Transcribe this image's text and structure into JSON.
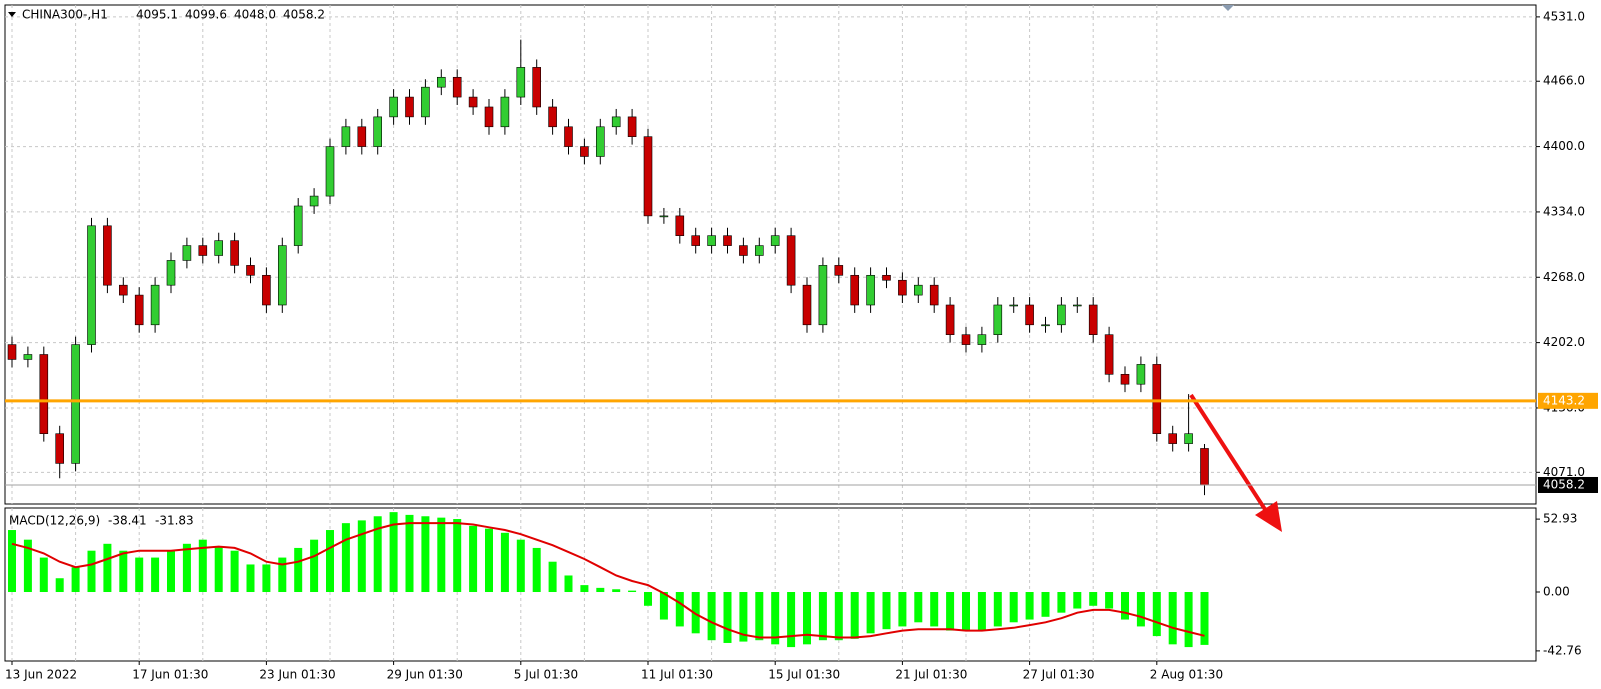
{
  "chart_data": {
    "type": "candlestick",
    "title": "CHINA300-,H1",
    "ohlc_labels": [
      "4095.1",
      "4099.6",
      "4048.0",
      "4058.2"
    ],
    "categories": [
      "13 Jun 2022",
      null,
      null,
      null,
      null,
      null,
      null,
      null,
      "17 Jun 01:30",
      null,
      null,
      null,
      null,
      null,
      null,
      null,
      "23 Jun 01:30",
      null,
      null,
      null,
      null,
      null,
      null,
      null,
      "29 Jun 01:30",
      null,
      null,
      null,
      null,
      null,
      null,
      null,
      "5 Jul 01:30",
      null,
      null,
      null,
      null,
      null,
      null,
      null,
      "11 Jul 01:30",
      null,
      null,
      null,
      null,
      null,
      null,
      null,
      "15 Jul 01:30",
      null,
      null,
      null,
      null,
      null,
      null,
      null,
      "21 Jul 01:30",
      null,
      null,
      null,
      null,
      null,
      null,
      null,
      "27 Jul 01:30",
      null,
      null,
      null,
      null,
      null,
      null,
      null,
      "2 Aug 01:30",
      null,
      null,
      null
    ],
    "open": [
      4200,
      4185,
      4190,
      4110,
      4080,
      4200,
      4320,
      4260,
      4250,
      4220,
      4260,
      4285,
      4300,
      4290,
      4305,
      4280,
      4270,
      4240,
      4300,
      4340,
      4350,
      4400,
      4420,
      4400,
      4430,
      4450,
      4430,
      4460,
      4470,
      4450,
      4440,
      4420,
      4450,
      4480,
      4440,
      4420,
      4400,
      4390,
      4420,
      4430,
      4410,
      4330,
      4330,
      4310,
      4300,
      4310,
      4300,
      4290,
      4300,
      4310,
      4260,
      4220,
      4280,
      4270,
      4240,
      4270,
      4265,
      4250,
      4260,
      4240,
      4210,
      4200,
      4210,
      4240,
      4240,
      4220,
      4220,
      4240,
      4240,
      4210,
      4170,
      4160,
      4180,
      4110,
      4100,
      4095.1
    ],
    "high": [
      4208,
      4198,
      4198,
      4118,
      4208,
      4328,
      4328,
      4268,
      4258,
      4268,
      4293,
      4308,
      4308,
      4313,
      4313,
      4288,
      4278,
      4308,
      4348,
      4358,
      4408,
      4428,
      4428,
      4438,
      4458,
      4458,
      4468,
      4478,
      4478,
      4458,
      4448,
      4458,
      4508,
      4488,
      4448,
      4428,
      4408,
      4428,
      4438,
      4438,
      4418,
      4338,
      4338,
      4318,
      4318,
      4318,
      4308,
      4308,
      4318,
      4318,
      4268,
      4288,
      4288,
      4278,
      4278,
      4278,
      4273,
      4268,
      4268,
      4248,
      4218,
      4218,
      4248,
      4248,
      4248,
      4228,
      4248,
      4248,
      4248,
      4218,
      4178,
      4188,
      4188,
      4118,
      4150,
      4099.6
    ],
    "low": [
      4177,
      4177,
      4102,
      4065,
      4072,
      4192,
      4252,
      4242,
      4212,
      4212,
      4252,
      4277,
      4282,
      4282,
      4272,
      4262,
      4232,
      4232,
      4292,
      4332,
      4342,
      4392,
      4392,
      4392,
      4422,
      4422,
      4422,
      4452,
      4442,
      4432,
      4412,
      4412,
      4442,
      4432,
      4412,
      4392,
      4382,
      4382,
      4412,
      4402,
      4322,
      4322,
      4302,
      4292,
      4292,
      4292,
      4282,
      4282,
      4292,
      4252,
      4212,
      4212,
      4262,
      4232,
      4232,
      4257,
      4242,
      4242,
      4232,
      4202,
      4192,
      4192,
      4202,
      4232,
      4212,
      4212,
      4212,
      4232,
      4202,
      4162,
      4152,
      4152,
      4102,
      4092,
      4092,
      4048.0
    ],
    "close": [
      4185,
      4190,
      4110,
      4080,
      4200,
      4320,
      4260,
      4250,
      4220,
      4260,
      4285,
      4300,
      4290,
      4305,
      4280,
      4270,
      4240,
      4300,
      4340,
      4350,
      4400,
      4420,
      4400,
      4430,
      4450,
      4430,
      4460,
      4470,
      4450,
      4440,
      4420,
      4450,
      4480,
      4440,
      4420,
      4400,
      4390,
      4420,
      4430,
      4410,
      4330,
      4330,
      4310,
      4300,
      4310,
      4300,
      4290,
      4300,
      4310,
      4260,
      4220,
      4280,
      4270,
      4240,
      4270,
      4265,
      4250,
      4260,
      4240,
      4210,
      4200,
      4210,
      4240,
      4240,
      4220,
      4220,
      4240,
      4240,
      4210,
      4170,
      4160,
      4180,
      4110,
      4100,
      4110,
      4058.2
    ],
    "up_color": "#32cd32",
    "down_color": "#c80000",
    "ylim": [
      4039,
      4543
    ],
    "yticks": [
      {
        "value": 4531,
        "label": "4531.0"
      },
      {
        "value": 4466,
        "label": "4466.0"
      },
      {
        "value": 4400,
        "label": "4400.0"
      },
      {
        "value": 4334,
        "label": "4334.0"
      },
      {
        "value": 4268,
        "label": "4268.0"
      },
      {
        "value": 4202,
        "label": "4202.0"
      },
      {
        "value": 4136,
        "label": "4136.0"
      },
      {
        "value": 4071,
        "label": "4071.0"
      }
    ],
    "grid": true,
    "level_line": {
      "value": 4143.2,
      "color": "#ffa500"
    },
    "indicator": {
      "title": "MACD(12,26,9)",
      "histogram": [
        45,
        38,
        25,
        10,
        18,
        30,
        35,
        30,
        25,
        25,
        30,
        35,
        38,
        33,
        30,
        20,
        20,
        25,
        32,
        38,
        45,
        50,
        52,
        55,
        58,
        56,
        55,
        54,
        53,
        48,
        46,
        43,
        38,
        32,
        22,
        12,
        5,
        3,
        2,
        1,
        -10,
        -20,
        -25,
        -30,
        -35,
        -37,
        -36,
        -35,
        -38,
        -40,
        -38,
        -35,
        -35,
        -34,
        -30,
        -27,
        -25,
        -22,
        -25,
        -28,
        -28,
        -28,
        -25,
        -22,
        -20,
        -18,
        -15,
        -12,
        -10,
        -12,
        -20,
        -25,
        -32,
        -38,
        -40,
        -38.41
      ],
      "signal": [
        35,
        32,
        28,
        22,
        18,
        20,
        24,
        28,
        30,
        30,
        30,
        31,
        32,
        33,
        32,
        28,
        22,
        20,
        22,
        26,
        32,
        38,
        42,
        46,
        49,
        50,
        50,
        50,
        50,
        49,
        47,
        45,
        42,
        38,
        34,
        29,
        24,
        18,
        12,
        8,
        5,
        -1,
        -8,
        -16,
        -22,
        -27,
        -31,
        -33,
        -33,
        -32,
        -31,
        -32,
        -33,
        -33,
        -32,
        -30,
        -28,
        -27,
        -27,
        -27,
        -28,
        -28,
        -27,
        -26,
        -24,
        -22,
        -19,
        -15,
        -13,
        -13,
        -15,
        -18,
        -22,
        -26,
        -29,
        -31.83
      ],
      "histogram_color": "#00ff00",
      "signal_color": "#e00000",
      "ylim": [
        -50.1,
        61
      ],
      "yticks": [
        52.93,
        {
          "value": 0,
          "label": "0.00"
        },
        -42.76
      ]
    }
  }
}
